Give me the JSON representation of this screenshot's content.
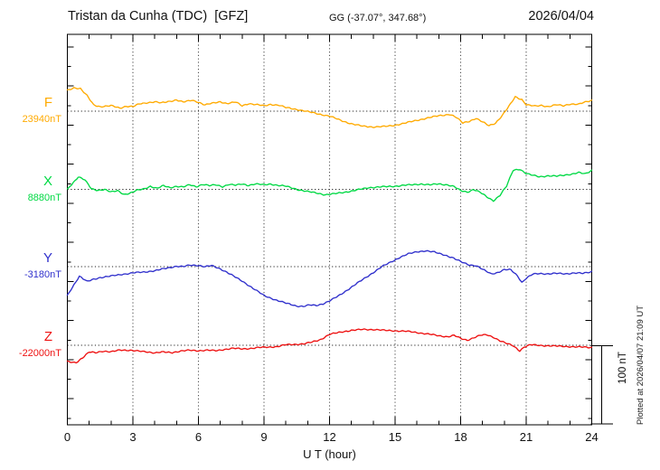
{
  "header": {
    "station_title": "Tristan da Cunha (TDC)  [GFZ]",
    "coords": "GG (-37.07°, 347.68°)",
    "date": "2026/04/04"
  },
  "margin_note": {
    "plotted_at": "Plotted at 2026/04/07 21:09 UT"
  },
  "chart_data": {
    "type": "line",
    "title": "Magnetogram Tristan da Cunha (TDC) [GFZ] 2026/04/04",
    "xlabel": "U T (hour)",
    "ylabel": "",
    "x_range": [
      0,
      24
    ],
    "x_ticks": [
      0,
      3,
      6,
      9,
      12,
      15,
      18,
      21,
      24
    ],
    "x_minor_tick_hours": 1,
    "grid": "dotted vertical lines every 3 h; dotted horizontal line at each component baseline",
    "scale_bar": {
      "label": "100 nT",
      "nT": 100
    },
    "series": [
      {
        "id": "F",
        "label": "F",
        "baseline_label": "23940nT",
        "baseline_nT": 23940,
        "color": "#ffaa00",
        "points": [
          [
            0,
            26.6
          ],
          [
            0.3,
            30.0
          ],
          [
            0.6,
            28.9
          ],
          [
            0.9,
            19.7
          ],
          [
            1.2,
            8.1
          ],
          [
            1.5,
            5.8
          ],
          [
            2.0,
            6.9
          ],
          [
            2.4,
            4.0
          ],
          [
            2.7,
            6.4
          ],
          [
            3.0,
            5.8
          ],
          [
            3.3,
            9.2
          ],
          [
            3.7,
            11.0
          ],
          [
            4.0,
            12.1
          ],
          [
            4.3,
            10.4
          ],
          [
            4.7,
            12.7
          ],
          [
            5.0,
            14.5
          ],
          [
            5.3,
            11.6
          ],
          [
            5.7,
            13.9
          ],
          [
            6.0,
            11.6
          ],
          [
            6.3,
            8.1
          ],
          [
            6.7,
            10.4
          ],
          [
            7.0,
            12.1
          ],
          [
            7.3,
            9.8
          ],
          [
            7.7,
            11.6
          ],
          [
            8.0,
            6.9
          ],
          [
            8.3,
            9.8
          ],
          [
            8.7,
            8.1
          ],
          [
            9.0,
            6.9
          ],
          [
            9.3,
            8.7
          ],
          [
            9.7,
            7.5
          ],
          [
            10.0,
            4.6
          ],
          [
            10.5,
            2.3
          ],
          [
            11.0,
            -0.6
          ],
          [
            11.5,
            -3.5
          ],
          [
            12.0,
            -6.4
          ],
          [
            12.5,
            -11.6
          ],
          [
            13.0,
            -16.2
          ],
          [
            13.5,
            -19.1
          ],
          [
            14.0,
            -20.2
          ],
          [
            14.5,
            -19.7
          ],
          [
            15.0,
            -17.9
          ],
          [
            15.5,
            -15.0
          ],
          [
            16.0,
            -11.6
          ],
          [
            16.5,
            -8.7
          ],
          [
            17.0,
            -5.8
          ],
          [
            17.5,
            -4.0
          ],
          [
            17.8,
            -8.1
          ],
          [
            18.1,
            -15.0
          ],
          [
            18.4,
            -12.7
          ],
          [
            18.7,
            -9.2
          ],
          [
            19.0,
            -13.9
          ],
          [
            19.3,
            -18.5
          ],
          [
            19.6,
            -15.0
          ],
          [
            19.9,
            -5.8
          ],
          [
            20.2,
            5.8
          ],
          [
            20.5,
            18.5
          ],
          [
            20.8,
            15.0
          ],
          [
            21.0,
            8.1
          ],
          [
            21.4,
            6.4
          ],
          [
            21.7,
            7.5
          ],
          [
            22.0,
            5.8
          ],
          [
            22.4,
            8.1
          ],
          [
            22.7,
            6.9
          ],
          [
            23.0,
            9.2
          ],
          [
            23.4,
            8.7
          ],
          [
            23.7,
            11.6
          ],
          [
            24.0,
            13.9
          ]
        ]
      },
      {
        "id": "X",
        "label": "X",
        "baseline_label": "8880nT",
        "baseline_nT": 8880,
        "color": "#00d944",
        "points": [
          [
            0,
            0
          ],
          [
            0.2,
            6.4
          ],
          [
            0.5,
            16.2
          ],
          [
            0.8,
            12.1
          ],
          [
            1.1,
            0.6
          ],
          [
            1.4,
            -1.2
          ],
          [
            1.7,
            0
          ],
          [
            2.0,
            -3.5
          ],
          [
            2.3,
            -1.7
          ],
          [
            2.6,
            -6.4
          ],
          [
            2.9,
            -4.6
          ],
          [
            3.2,
            -1.2
          ],
          [
            3.5,
            0.6
          ],
          [
            3.8,
            4.0
          ],
          [
            4.1,
            1.2
          ],
          [
            4.4,
            4.6
          ],
          [
            4.7,
            2.3
          ],
          [
            5.0,
            4.0
          ],
          [
            5.3,
            2.9
          ],
          [
            5.6,
            5.8
          ],
          [
            5.9,
            3.5
          ],
          [
            6.2,
            6.4
          ],
          [
            6.5,
            4.6
          ],
          [
            6.8,
            5.8
          ],
          [
            7.1,
            3.5
          ],
          [
            7.4,
            6.4
          ],
          [
            7.7,
            5.2
          ],
          [
            8.0,
            6.9
          ],
          [
            8.3,
            5.2
          ],
          [
            8.6,
            6.9
          ],
          [
            9.0,
            5.8
          ],
          [
            9.3,
            6.9
          ],
          [
            9.6,
            5.2
          ],
          [
            10.0,
            4.0
          ],
          [
            10.3,
            1.7
          ],
          [
            10.6,
            -0.6
          ],
          [
            11.0,
            -2.9
          ],
          [
            11.4,
            -4.6
          ],
          [
            11.8,
            -6.9
          ],
          [
            12.2,
            -5.8
          ],
          [
            12.6,
            -4.0
          ],
          [
            13.0,
            -2.3
          ],
          [
            13.4,
            0
          ],
          [
            13.8,
            2.3
          ],
          [
            14.2,
            2.9
          ],
          [
            14.6,
            3.5
          ],
          [
            15.0,
            4.0
          ],
          [
            15.4,
            5.2
          ],
          [
            15.8,
            5.8
          ],
          [
            16.2,
            6.9
          ],
          [
            16.6,
            5.8
          ],
          [
            17.0,
            6.9
          ],
          [
            17.4,
            5.8
          ],
          [
            17.7,
            3.5
          ],
          [
            18.0,
            -1.7
          ],
          [
            18.3,
            -3.5
          ],
          [
            18.6,
            0
          ],
          [
            18.9,
            -4.0
          ],
          [
            19.2,
            -9.8
          ],
          [
            19.5,
            -14.5
          ],
          [
            19.8,
            -7.5
          ],
          [
            20.1,
            4.0
          ],
          [
            20.4,
            24.3
          ],
          [
            20.7,
            26.0
          ],
          [
            21.0,
            20.2
          ],
          [
            21.3,
            17.9
          ],
          [
            21.6,
            16.2
          ],
          [
            22.0,
            17.3
          ],
          [
            22.4,
            16.8
          ],
          [
            22.8,
            18.5
          ],
          [
            23.1,
            19.7
          ],
          [
            23.4,
            21.4
          ],
          [
            23.7,
            19.7
          ],
          [
            24.0,
            24.3
          ]
        ]
      },
      {
        "id": "Y",
        "label": "Y",
        "baseline_label": "-3180nT",
        "baseline_nT": -3180,
        "color": "#3030cc",
        "points": [
          [
            0,
            -37.0
          ],
          [
            0.3,
            -23.1
          ],
          [
            0.55,
            -12.1
          ],
          [
            0.9,
            -19.1
          ],
          [
            1.2,
            -16.2
          ],
          [
            1.5,
            -13.9
          ],
          [
            2.0,
            -12.1
          ],
          [
            2.5,
            -9.8
          ],
          [
            3.0,
            -8.1
          ],
          [
            3.5,
            -6.9
          ],
          [
            4.0,
            -5.2
          ],
          [
            4.5,
            -2.3
          ],
          [
            5.0,
            0.6
          ],
          [
            5.3,
            0
          ],
          [
            5.6,
            1.7
          ],
          [
            6.0,
            1.7
          ],
          [
            6.3,
            0
          ],
          [
            6.6,
            1.2
          ],
          [
            7.0,
            -2.9
          ],
          [
            7.3,
            -6.9
          ],
          [
            7.6,
            -12.1
          ],
          [
            8.0,
            -18.5
          ],
          [
            8.5,
            -27.7
          ],
          [
            9.0,
            -37.0
          ],
          [
            9.5,
            -42.2
          ],
          [
            10.0,
            -46.8
          ],
          [
            10.5,
            -50.3
          ],
          [
            10.8,
            -50.9
          ],
          [
            11.1,
            -49.1
          ],
          [
            11.4,
            -49.7
          ],
          [
            11.7,
            -47.4
          ],
          [
            12.0,
            -43.9
          ],
          [
            12.4,
            -37.6
          ],
          [
            12.8,
            -30.1
          ],
          [
            13.2,
            -22.5
          ],
          [
            13.6,
            -15.0
          ],
          [
            14.0,
            -7.5
          ],
          [
            14.4,
            0
          ],
          [
            14.8,
            5.8
          ],
          [
            15.2,
            11.6
          ],
          [
            15.6,
            16.2
          ],
          [
            16.0,
            19.1
          ],
          [
            16.4,
            20.2
          ],
          [
            16.8,
            18.5
          ],
          [
            17.2,
            15.6
          ],
          [
            17.6,
            11.6
          ],
          [
            18.0,
            6.4
          ],
          [
            18.4,
            2.3
          ],
          [
            18.7,
            1.2
          ],
          [
            19.0,
            -3.5
          ],
          [
            19.4,
            -9.2
          ],
          [
            19.7,
            -7.5
          ],
          [
            20.0,
            -4.0
          ],
          [
            20.3,
            -4.0
          ],
          [
            20.6,
            -11.6
          ],
          [
            20.8,
            -20.2
          ],
          [
            21.0,
            -15.0
          ],
          [
            21.3,
            -9.8
          ],
          [
            21.6,
            -8.7
          ],
          [
            22.0,
            -9.2
          ],
          [
            22.4,
            -8.7
          ],
          [
            22.8,
            -9.2
          ],
          [
            23.2,
            -8.1
          ],
          [
            23.6,
            -8.7
          ],
          [
            24.0,
            -6.4
          ]
        ]
      },
      {
        "id": "Z",
        "label": "Z",
        "baseline_label": "-22000nT",
        "baseline_nT": -22000,
        "color": "#ee1111",
        "points": [
          [
            0,
            -20.8
          ],
          [
            0.4,
            -22.0
          ],
          [
            0.7,
            -16.2
          ],
          [
            1.0,
            -8.7
          ],
          [
            1.3,
            -9.2
          ],
          [
            1.6,
            -7.5
          ],
          [
            2.0,
            -8.7
          ],
          [
            2.4,
            -5.8
          ],
          [
            2.8,
            -6.4
          ],
          [
            3.2,
            -7.5
          ],
          [
            3.6,
            -8.1
          ],
          [
            4.0,
            -9.8
          ],
          [
            4.4,
            -8.7
          ],
          [
            4.8,
            -9.2
          ],
          [
            5.2,
            -7.5
          ],
          [
            5.6,
            -6.4
          ],
          [
            6.0,
            -6.9
          ],
          [
            6.4,
            -6.4
          ],
          [
            6.8,
            -6.9
          ],
          [
            7.2,
            -5.2
          ],
          [
            7.6,
            -4.0
          ],
          [
            8.0,
            -4.6
          ],
          [
            8.4,
            -4.0
          ],
          [
            8.8,
            -2.9
          ],
          [
            9.2,
            -2.3
          ],
          [
            9.6,
            -1.7
          ],
          [
            10.0,
            0.6
          ],
          [
            10.4,
            1.2
          ],
          [
            10.8,
            1.7
          ],
          [
            11.2,
            4.0
          ],
          [
            11.6,
            7.5
          ],
          [
            12.0,
            13.9
          ],
          [
            12.6,
            17.3
          ],
          [
            13.0,
            19.1
          ],
          [
            13.5,
            20.2
          ],
          [
            14.0,
            20.2
          ],
          [
            14.5,
            19.1
          ],
          [
            15.0,
            18.5
          ],
          [
            15.5,
            17.9
          ],
          [
            16.0,
            16.2
          ],
          [
            16.5,
            14.5
          ],
          [
            17.0,
            12.1
          ],
          [
            17.4,
            11.0
          ],
          [
            17.7,
            12.7
          ],
          [
            18.0,
            8.7
          ],
          [
            18.3,
            6.4
          ],
          [
            18.6,
            9.8
          ],
          [
            18.9,
            12.7
          ],
          [
            19.2,
            13.3
          ],
          [
            19.5,
            10.4
          ],
          [
            19.8,
            5.8
          ],
          [
            20.1,
            2.3
          ],
          [
            20.4,
            -0.6
          ],
          [
            20.7,
            -6.9
          ],
          [
            20.9,
            -2.3
          ],
          [
            21.2,
            0.6
          ],
          [
            21.5,
            0
          ],
          [
            22.0,
            -0.6
          ],
          [
            22.5,
            -1.2
          ],
          [
            23.0,
            -1.7
          ],
          [
            23.5,
            -2.3
          ],
          [
            24.0,
            -2.9
          ]
        ]
      }
    ]
  }
}
